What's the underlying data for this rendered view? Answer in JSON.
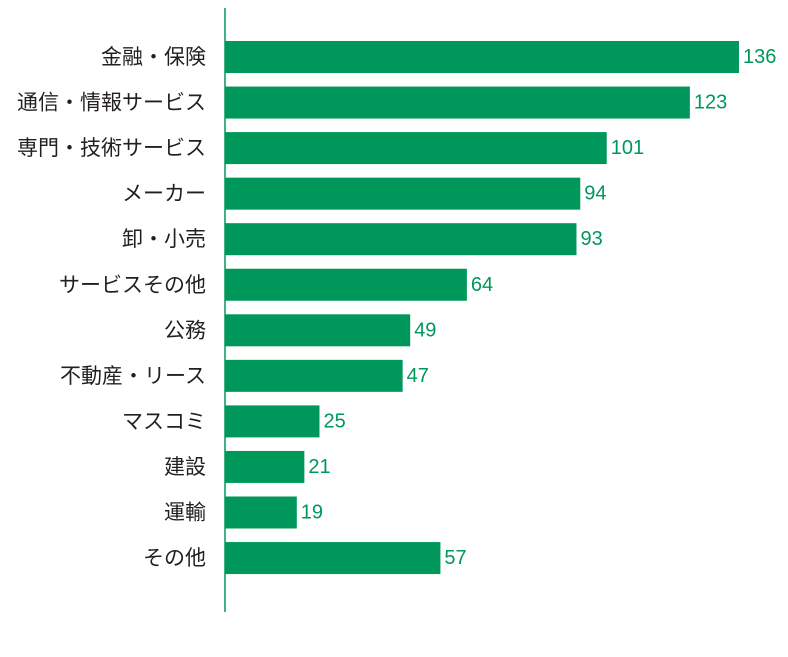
{
  "colors": {
    "bar": "#00985a",
    "value_text": "#00985a",
    "axis": "#00985a",
    "category_text": "#231f20",
    "background": "#ffffff"
  },
  "chart_data": {
    "type": "bar",
    "orientation": "horizontal",
    "title": "",
    "xlabel": "",
    "ylabel": "",
    "categories": [
      "金融・保険",
      "通信・情報サービス",
      "専門・技術サービス",
      "メーカー",
      "卸・小売",
      "サービスその他",
      "公務",
      "不動産・リース",
      "マスコミ",
      "建設",
      "運輸",
      "その他"
    ],
    "values": [
      136,
      123,
      101,
      94,
      93,
      64,
      49,
      47,
      25,
      21,
      19,
      57
    ],
    "xlim": [
      0,
      136
    ],
    "grid": false,
    "legend": "none"
  }
}
